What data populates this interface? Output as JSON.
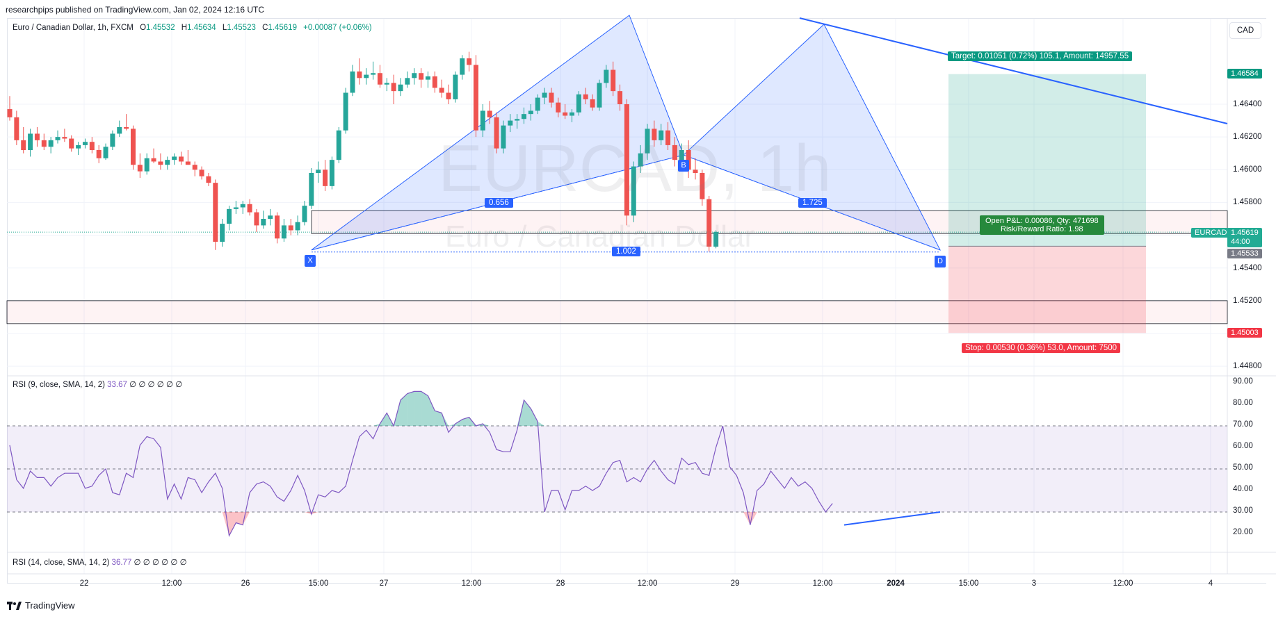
{
  "header": {
    "publisher_line": "researchpips published on TradingView.com, Jan 02, 2024 12:16 UTC"
  },
  "symbol_line": {
    "name": "Euro / Canadian Dollar, 1h, FXCM",
    "o_label": "O",
    "o": "1.45532",
    "h_label": "H",
    "h": "1.45634",
    "l_label": "L",
    "l": "1.45523",
    "c_label": "C",
    "c": "1.45619",
    "change": "+0.00087 (+0.06%)"
  },
  "currency_button": "CAD",
  "watermark": {
    "symbol": "EURCAD, 1h",
    "description": "Euro / Canadian Dollar"
  },
  "price_axis": {
    "ticks": [
      "1.46400",
      "1.46200",
      "1.46000",
      "1.45800",
      "1.45400",
      "1.45200",
      "1.44800"
    ],
    "target_badge": "1.46584",
    "symbol_badge": "EURCAD",
    "last_price": "1.45619",
    "countdown": "44:00",
    "entry_badge": "1.45533",
    "stop_badge": "1.45003",
    "colors": {
      "target": "#089981",
      "symbol": "#22ab94",
      "entry": "#787b86",
      "stop": "#f23645"
    }
  },
  "pattern": {
    "points": [
      "X",
      "B",
      "D"
    ],
    "ratios": {
      "xb": "0.656",
      "bd": "1.725",
      "xd": "1.002"
    }
  },
  "position": {
    "target": "Target: 0.01051 (0.72%) 105.1, Amount: 14957.55",
    "pnl_line1": "Open P&L: 0.00086, Qty: 471698",
    "pnl_line2": "Risk/Reward Ratio: 1.98",
    "stop": "Stop: 0.00530 (0.36%) 53.0, Amount: 7500"
  },
  "rsi1": {
    "label": "RSI (9, close, SMA, 14, 2)",
    "value": "33.67",
    "flags": "∅ ∅ ∅ ∅ ∅ ∅",
    "ticks": [
      "90.00",
      "80.00",
      "70.00",
      "60.00",
      "50.00",
      "40.00",
      "30.00",
      "20.00"
    ]
  },
  "rsi2": {
    "label": "RSI (14, close, SMA, 14, 2)",
    "value": "36.77",
    "flags": "∅ ∅ ∅ ∅ ∅ ∅"
  },
  "time_axis": {
    "labels": [
      "22",
      "12:00",
      "26",
      "15:00",
      "27",
      "12:00",
      "28",
      "12:00",
      "29",
      "12:00",
      "2024",
      "15:00",
      "3",
      "12:00",
      "4"
    ]
  },
  "footer": {
    "brand": "TradingView"
  },
  "chart_data": {
    "type": "candlestick",
    "series": [
      {
        "name": "EURCAD"
      }
    ],
    "price_range": [
      1.4476,
      1.466
    ],
    "rsi_range": [
      15,
      92
    ],
    "candles_ohlc": [
      [
        1.4637,
        1.4645,
        1.463,
        1.4632
      ],
      [
        1.4632,
        1.4636,
        1.4615,
        1.4618
      ],
      [
        1.4618,
        1.4626,
        1.461,
        1.4612
      ],
      [
        1.4612,
        1.4625,
        1.4608,
        1.4622
      ],
      [
        1.4622,
        1.4626,
        1.4614,
        1.4618
      ],
      [
        1.4618,
        1.4622,
        1.4612,
        1.4614
      ],
      [
        1.4614,
        1.462,
        1.461,
        1.4618
      ],
      [
        1.4618,
        1.4624,
        1.4616,
        1.462
      ],
      [
        1.462,
        1.4625,
        1.4617,
        1.4619
      ],
      [
        1.4619,
        1.4621,
        1.4611,
        1.4613
      ],
      [
        1.4613,
        1.4617,
        1.4609,
        1.4615
      ],
      [
        1.4615,
        1.4619,
        1.4613,
        1.4617
      ],
      [
        1.4617,
        1.462,
        1.461,
        1.4612
      ],
      [
        1.4612,
        1.4615,
        1.4604,
        1.4607
      ],
      [
        1.4607,
        1.4616,
        1.4606,
        1.4614
      ],
      [
        1.4614,
        1.4624,
        1.4612,
        1.4622
      ],
      [
        1.4622,
        1.463,
        1.462,
        1.4626
      ],
      [
        1.4626,
        1.4634,
        1.4624,
        1.4625
      ],
      [
        1.4625,
        1.4627,
        1.46,
        1.4603
      ],
      [
        1.4603,
        1.461,
        1.4595,
        1.4599
      ],
      [
        1.4599,
        1.461,
        1.4597,
        1.4607
      ],
      [
        1.4607,
        1.4613,
        1.4604,
        1.4605
      ],
      [
        1.4605,
        1.461,
        1.46,
        1.4603
      ],
      [
        1.4603,
        1.4608,
        1.46,
        1.4606
      ],
      [
        1.4606,
        1.461,
        1.4603,
        1.4608
      ],
      [
        1.4608,
        1.4611,
        1.4603,
        1.4605
      ],
      [
        1.4605,
        1.4612,
        1.4603,
        1.4603
      ],
      [
        1.4603,
        1.4605,
        1.4596,
        1.46
      ],
      [
        1.46,
        1.4602,
        1.4594,
        1.4596
      ],
      [
        1.4596,
        1.4598,
        1.459,
        1.4592
      ],
      [
        1.4592,
        1.4594,
        1.4551,
        1.4556
      ],
      [
        1.4556,
        1.457,
        1.4553,
        1.4567
      ],
      [
        1.4567,
        1.4578,
        1.4563,
        1.4576
      ],
      [
        1.4576,
        1.4581,
        1.4573,
        1.4577
      ],
      [
        1.4577,
        1.4581,
        1.4573,
        1.4579
      ],
      [
        1.4579,
        1.4582,
        1.4572,
        1.4574
      ],
      [
        1.4574,
        1.4576,
        1.4562,
        1.4566
      ],
      [
        1.4566,
        1.4575,
        1.4564,
        1.457
      ],
      [
        1.457,
        1.4576,
        1.4566,
        1.4572
      ],
      [
        1.4572,
        1.4574,
        1.4555,
        1.4558
      ],
      [
        1.4558,
        1.457,
        1.4556,
        1.4566
      ],
      [
        1.4566,
        1.457,
        1.456,
        1.4563
      ],
      [
        1.4563,
        1.4572,
        1.456,
        1.4568
      ],
      [
        1.4568,
        1.4581,
        1.4566,
        1.4578
      ],
      [
        1.4578,
        1.4601,
        1.4576,
        1.4598
      ],
      [
        1.4598,
        1.4605,
        1.4592,
        1.46
      ],
      [
        1.46,
        1.4606,
        1.4587,
        1.459
      ],
      [
        1.459,
        1.4608,
        1.4588,
        1.4606
      ],
      [
        1.4606,
        1.4626,
        1.4604,
        1.4624
      ],
      [
        1.4624,
        1.465,
        1.4622,
        1.4647
      ],
      [
        1.4647,
        1.4664,
        1.4645,
        1.466
      ],
      [
        1.466,
        1.4668,
        1.4652,
        1.4656
      ],
      [
        1.4656,
        1.4662,
        1.4652,
        1.4658
      ],
      [
        1.4658,
        1.4666,
        1.4655,
        1.4659
      ],
      [
        1.4659,
        1.4664,
        1.465,
        1.4652
      ],
      [
        1.4652,
        1.4656,
        1.4648,
        1.4653
      ],
      [
        1.4653,
        1.4658,
        1.464,
        1.4648
      ],
      [
        1.4648,
        1.4656,
        1.4645,
        1.4652
      ],
      [
        1.4652,
        1.466,
        1.465,
        1.4656
      ],
      [
        1.4656,
        1.4662,
        1.4652,
        1.4659
      ],
      [
        1.4659,
        1.4662,
        1.465,
        1.4655
      ],
      [
        1.4655,
        1.466,
        1.465,
        1.4657
      ],
      [
        1.4657,
        1.466,
        1.4647,
        1.465
      ],
      [
        1.465,
        1.4655,
        1.4644,
        1.4647
      ],
      [
        1.4647,
        1.4652,
        1.464,
        1.4643
      ],
      [
        1.4643,
        1.466,
        1.4641,
        1.4658
      ],
      [
        1.4658,
        1.467,
        1.4655,
        1.4668
      ],
      [
        1.4668,
        1.4672,
        1.466,
        1.4664
      ],
      [
        1.4664,
        1.467,
        1.462,
        1.4624
      ],
      [
        1.4624,
        1.464,
        1.462,
        1.4636
      ],
      [
        1.4636,
        1.4642,
        1.4628,
        1.4632
      ],
      [
        1.4632,
        1.4635,
        1.461,
        1.4613
      ],
      [
        1.4613,
        1.463,
        1.461,
        1.4627
      ],
      [
        1.4627,
        1.4634,
        1.4623,
        1.463
      ],
      [
        1.463,
        1.4634,
        1.4625,
        1.4631
      ],
      [
        1.4631,
        1.4638,
        1.4628,
        1.4634
      ],
      [
        1.4634,
        1.464,
        1.463,
        1.4636
      ],
      [
        1.4636,
        1.4646,
        1.4634,
        1.4644
      ],
      [
        1.4644,
        1.465,
        1.464,
        1.4647
      ],
      [
        1.4647,
        1.465,
        1.4638,
        1.4641
      ],
      [
        1.4641,
        1.4644,
        1.4632,
        1.4635
      ],
      [
        1.4635,
        1.464,
        1.4631,
        1.4633
      ],
      [
        1.4633,
        1.4637,
        1.4629,
        1.4635
      ],
      [
        1.4635,
        1.4648,
        1.4633,
        1.4646
      ],
      [
        1.4646,
        1.465,
        1.464,
        1.4643
      ],
      [
        1.4643,
        1.4646,
        1.4636,
        1.4638
      ],
      [
        1.4638,
        1.4655,
        1.4636,
        1.4653
      ],
      [
        1.4653,
        1.4664,
        1.465,
        1.4661
      ],
      [
        1.4661,
        1.4666,
        1.4645,
        1.4648
      ],
      [
        1.4648,
        1.4652,
        1.4636,
        1.464
      ],
      [
        1.464,
        1.4643,
        1.4566,
        1.4572
      ],
      [
        1.4572,
        1.4605,
        1.4568,
        1.4602
      ],
      [
        1.4602,
        1.4615,
        1.4598,
        1.461
      ],
      [
        1.461,
        1.4628,
        1.4606,
        1.4625
      ],
      [
        1.4625,
        1.463,
        1.4614,
        1.4618
      ],
      [
        1.4618,
        1.4628,
        1.4615,
        1.4624
      ],
      [
        1.4624,
        1.4629,
        1.4612,
        1.4615
      ],
      [
        1.4615,
        1.462,
        1.4602,
        1.4606
      ],
      [
        1.4606,
        1.4616,
        1.4603,
        1.4612
      ],
      [
        1.4612,
        1.4618,
        1.4595,
        1.46
      ],
      [
        1.46,
        1.4607,
        1.4594,
        1.4598
      ],
      [
        1.4598,
        1.46,
        1.4578,
        1.4582
      ],
      [
        1.4582,
        1.4584,
        1.455,
        1.4553
      ],
      [
        1.4553,
        1.4563,
        1.4552,
        1.4562
      ]
    ],
    "rsi9": [
      61,
      45,
      41,
      49,
      46,
      46,
      42,
      46,
      48,
      48,
      48,
      41,
      42,
      47,
      50,
      39,
      38,
      48,
      46,
      61,
      65,
      64,
      60,
      36,
      43,
      36,
      46,
      45,
      39,
      44,
      48,
      41,
      19,
      25,
      24,
      39,
      43,
      44,
      42,
      37,
      35,
      40,
      47,
      40,
      29,
      38,
      37,
      40,
      39,
      42,
      54,
      65,
      68,
      64,
      71,
      76,
      70,
      82,
      85,
      86,
      86,
      84,
      77,
      76,
      67,
      71,
      73,
      74,
      70,
      71,
      67,
      59,
      58,
      58,
      68,
      82,
      78,
      72,
      30,
      40,
      40,
      31,
      40,
      40,
      42,
      40,
      42,
      48,
      53,
      54,
      44,
      46,
      44,
      50,
      54,
      49,
      45,
      43,
      55,
      52,
      53,
      48,
      47,
      60,
      70,
      51,
      47,
      39,
      24,
      40,
      43,
      49,
      45,
      41,
      46,
      42,
      44,
      41,
      35,
      30,
      34
    ],
    "overbought": 70,
    "midline": 50,
    "oversold": 30
  }
}
